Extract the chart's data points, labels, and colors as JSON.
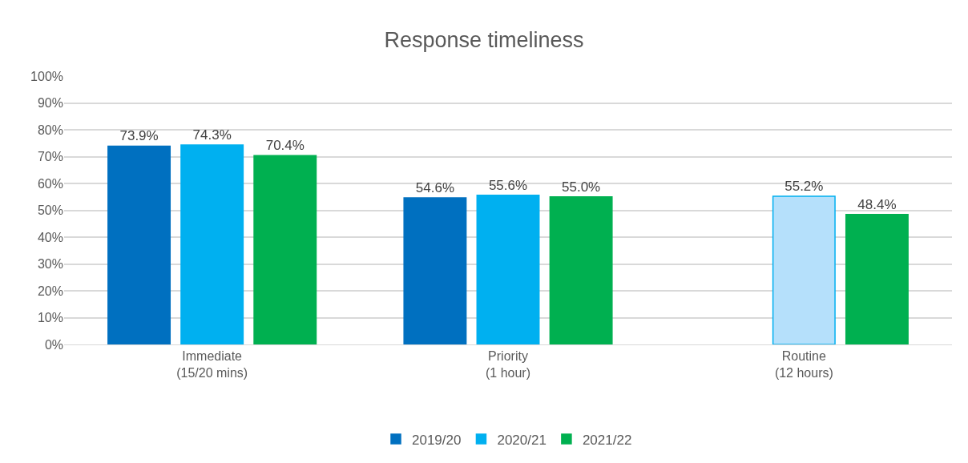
{
  "chart_data": {
    "type": "bar",
    "title": "Response timeliness",
    "categories": [
      "Immediate\n(15/20 mins)",
      "Priority\n(1 hour)",
      "Routine\n(12 hours)"
    ],
    "series": [
      {
        "name": "2019/20",
        "color": "#0070c0",
        "values": [
          73.9,
          54.6,
          null
        ],
        "value_labels": [
          "73.9%",
          "54.6%",
          null
        ]
      },
      {
        "name": "2020/21",
        "color": "#00b0f0",
        "colors": [
          "#00b0f0",
          "#00b0f0",
          "#b5e0fb"
        ],
        "values": [
          74.3,
          55.6,
          55.2
        ],
        "value_labels": [
          "74.3%",
          "55.6%",
          "55.2%"
        ]
      },
      {
        "name": "2021/22",
        "color": "#00b050",
        "values": [
          70.4,
          55.0,
          48.4
        ],
        "value_labels": [
          "70.4%",
          "55.0%",
          "48.4%"
        ]
      }
    ],
    "ylim": [
      0,
      100
    ],
    "yticks": [
      {
        "value": 0,
        "label": "0%"
      },
      {
        "value": 10,
        "label": "10%"
      },
      {
        "value": 20,
        "label": "20%"
      },
      {
        "value": 30,
        "label": "30%"
      },
      {
        "value": 40,
        "label": "40%"
      },
      {
        "value": 50,
        "label": "50%"
      },
      {
        "value": 60,
        "label": "60%"
      },
      {
        "value": 70,
        "label": "70%"
      },
      {
        "value": 80,
        "label": "80%"
      },
      {
        "value": 90,
        "label": "90%"
      },
      {
        "value": 100,
        "label": "100%"
      }
    ],
    "grid": "y",
    "legend": "bottom"
  }
}
